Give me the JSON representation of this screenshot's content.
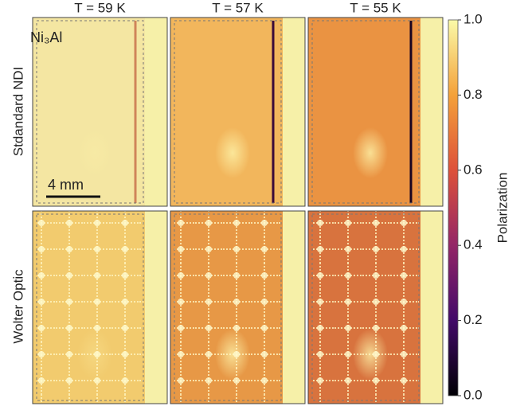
{
  "chart_data": {
    "type": "image-grid",
    "columns": [
      "T = 59 K",
      "T = 57 K",
      "T = 55 K"
    ],
    "rows": [
      "Stdandard NDI",
      "Wolter Optic"
    ],
    "sample_label": "Ni₃Al",
    "scale_bar": "4 mm",
    "colorbar": {
      "label": "Polarization",
      "ylim": [
        0,
        1
      ],
      "yticks": [
        {
          "value": 0,
          "label": "0.0"
        },
        0.2,
        0.4,
        0.6,
        0.8,
        {
          "value": 1,
          "label": "1.0"
        }
      ]
    }
  }
}
